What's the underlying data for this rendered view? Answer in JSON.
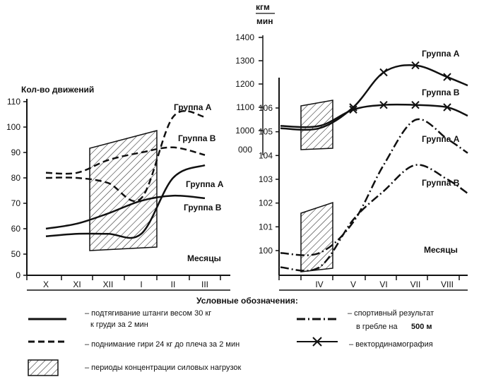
{
  "colors": {
    "ink": "#111111",
    "background": "#ffffff"
  },
  "chart_data": [
    {
      "type": "line",
      "ylabel": "Кол-во движений",
      "xlabel": "Месяцы",
      "categories": [
        "X",
        "XI",
        "XII",
        "I",
        "II",
        "III"
      ],
      "ylim": [
        0,
        110
      ],
      "yticks": [
        0,
        50,
        60,
        70,
        80,
        90,
        100,
        110
      ],
      "shaded_period": [
        "XII",
        "I"
      ],
      "series": [
        {
          "name": "Группа А",
          "style": "dashed",
          "x": [
            "X",
            "XI",
            "XII",
            "I",
            "II",
            "III"
          ],
          "values": [
            82,
            82,
            87,
            90,
            92,
            89
          ]
        },
        {
          "name": "Группа В",
          "style": "dashed",
          "x": [
            "X",
            "XI",
            "XII",
            "I",
            "II",
            "III"
          ],
          "values": [
            80,
            80,
            78,
            72,
            104,
            104
          ]
        },
        {
          "name": "Группа А",
          "style": "solid",
          "x": [
            "X",
            "XI",
            "XII",
            "I",
            "II",
            "III"
          ],
          "values": [
            57,
            58,
            58,
            58,
            80,
            85
          ]
        },
        {
          "name": "Группа В",
          "style": "solid",
          "x": [
            "X",
            "XI",
            "XII",
            "I",
            "II",
            "III"
          ],
          "values": [
            60,
            62,
            66,
            71,
            73,
            72
          ]
        }
      ]
    },
    {
      "type": "line",
      "xlabel": "Месяцы",
      "categories": [
        "IV",
        "V",
        "VI",
        "VII",
        "VIII"
      ],
      "left_axis": {
        "ticks": [
          100,
          101,
          102,
          103,
          104,
          105,
          106
        ],
        "labels": [
          "100",
          "101",
          "102",
          "103",
          "104",
          "105",
          "106"
        ]
      },
      "inner_axis": {
        "unit_top": "кгм",
        "unit_bottom": "мин",
        "ticks": [
          1000,
          1100,
          1200,
          1300,
          1400
        ],
        "labels": [
          "1000",
          "1100",
          "1200",
          "1300",
          "1400"
        ],
        "zero_label": "000"
      },
      "shaded_period": [
        "IV"
      ],
      "series": [
        {
          "name": "Группа А",
          "style": "x-markers",
          "axis": "inner",
          "x": [
            "IV",
            "V",
            "VI",
            "VII",
            "VIII"
          ],
          "values": [
            1010,
            1100,
            1250,
            1280,
            1230
          ]
        },
        {
          "name": "Группа В",
          "style": "x-markers",
          "axis": "inner",
          "x": [
            "IV",
            "V",
            "VI",
            "VII",
            "VIII"
          ],
          "values": [
            1020,
            1090,
            1110,
            1110,
            1100
          ]
        },
        {
          "name": "Группа А",
          "style": "dash-dot",
          "axis": "left",
          "x": [
            "IV",
            "V",
            "VI",
            "VII",
            "VIII"
          ],
          "values": [
            99.9,
            101.2,
            103.6,
            105.5,
            104.7
          ]
        },
        {
          "name": "Группа В",
          "style": "dash-dot",
          "axis": "left",
          "x": [
            "IV",
            "V",
            "VI",
            "VII",
            "VIII"
          ],
          "values": [
            99.3,
            101.3,
            102.5,
            103.6,
            103.0
          ]
        }
      ]
    }
  ],
  "legend": {
    "title": "Условные обозначения:",
    "items": [
      {
        "style": "solid",
        "text_line1": "– подтягивание штанги весом 30 кг",
        "text_line2": "к груди за 2 мин"
      },
      {
        "style": "dashed",
        "text_line1": "– поднимание гири 24 кг до плеча за 2 мин",
        "text_line2": ""
      },
      {
        "style": "hatched",
        "text_line1": "– периоды концентрации силовых нагрузок",
        "text_line2": ""
      },
      {
        "style": "dash-dot",
        "text_line1": "– спортивный результат",
        "text_line2": "в гребле на",
        "text_line2_value": "500 м"
      },
      {
        "style": "x-markers",
        "text_line1": "– вектординамография",
        "text_line2": ""
      }
    ]
  },
  "text": {
    "left_ylabel": "Кол-во движений",
    "months": "Месяцы",
    "group_a": "Группа А",
    "group_b": "Группа В"
  }
}
